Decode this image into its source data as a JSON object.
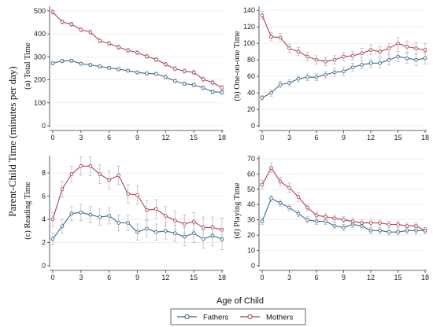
{
  "figure": {
    "shared_ylabel": "Parent-Child Time (minutes per day)",
    "shared_xlabel": "Age of Child",
    "legend": {
      "fathers": "Fathers",
      "mothers": "Mothers"
    },
    "colors": {
      "fathers": "#3d6a8f",
      "mothers": "#b04350"
    }
  },
  "chart_data": [
    {
      "type": "line",
      "ylabel": "(a) Total Time",
      "x": [
        0,
        1,
        2,
        3,
        4,
        5,
        6,
        7,
        8,
        9,
        10,
        11,
        12,
        13,
        14,
        15,
        16,
        17,
        18
      ],
      "xticks": [
        0,
        3,
        6,
        9,
        12,
        15,
        18
      ],
      "ylim": [
        0,
        520
      ],
      "yticks": [
        0,
        100,
        200,
        300,
        400,
        500
      ],
      "series": [
        {
          "name": "Fathers",
          "values": [
            272,
            282,
            283,
            270,
            265,
            258,
            252,
            246,
            240,
            232,
            228,
            226,
            212,
            195,
            183,
            178,
            165,
            148,
            145
          ],
          "err": [
            7,
            8,
            7,
            7,
            7,
            7,
            7,
            7,
            7,
            7,
            7,
            7,
            7,
            8,
            8,
            8,
            8,
            9,
            9
          ]
        },
        {
          "name": "Mothers",
          "values": [
            495,
            452,
            442,
            418,
            408,
            370,
            358,
            342,
            328,
            318,
            302,
            288,
            268,
            248,
            238,
            232,
            202,
            188,
            166
          ],
          "err": [
            9,
            9,
            9,
            9,
            9,
            9,
            9,
            9,
            9,
            9,
            9,
            9,
            9,
            9,
            9,
            10,
            10,
            10,
            10
          ]
        }
      ]
    },
    {
      "type": "line",
      "ylabel": "(b) One-on-one Time",
      "x": [
        0,
        1,
        2,
        3,
        4,
        5,
        6,
        7,
        8,
        9,
        10,
        11,
        12,
        13,
        14,
        15,
        16,
        17,
        18
      ],
      "xticks": [
        0,
        3,
        6,
        9,
        12,
        15,
        18
      ],
      "ylim": [
        0,
        145
      ],
      "yticks": [
        0,
        20,
        40,
        60,
        80,
        100,
        120,
        140
      ],
      "series": [
        {
          "name": "Fathers",
          "values": [
            34,
            40,
            50,
            52,
            57,
            59,
            59,
            62,
            65,
            66,
            71,
            74,
            76,
            76,
            80,
            84,
            82,
            80,
            82
          ],
          "err": [
            3,
            4,
            4,
            4,
            4,
            4,
            4,
            4,
            5,
            5,
            5,
            5,
            5,
            6,
            6,
            6,
            6,
            7,
            7
          ]
        },
        {
          "name": "Mothers",
          "values": [
            134,
            108,
            107,
            94,
            90,
            84,
            80,
            78,
            80,
            84,
            85,
            88,
            92,
            90,
            94,
            100,
            96,
            94,
            92
          ],
          "err": [
            5,
            5,
            5,
            5,
            5,
            5,
            5,
            5,
            5,
            5,
            5,
            6,
            6,
            6,
            6,
            7,
            7,
            7,
            8
          ]
        }
      ]
    },
    {
      "type": "line",
      "ylabel": "(c) Reading Time",
      "x": [
        0,
        1,
        2,
        3,
        4,
        5,
        6,
        7,
        8,
        9,
        10,
        11,
        12,
        13,
        14,
        15,
        16,
        17,
        18
      ],
      "xticks": [
        0,
        3,
        6,
        9,
        12,
        15,
        18
      ],
      "ylim": [
        0,
        9.5
      ],
      "yticks": [
        0,
        2,
        4,
        6,
        8
      ],
      "series": [
        {
          "name": "Fathers",
          "values": [
            2.3,
            3.4,
            4.5,
            4.6,
            4.4,
            4.2,
            4.3,
            3.7,
            3.7,
            2.9,
            3.2,
            2.9,
            3.0,
            2.8,
            2.5,
            2.8,
            2.3,
            2.6,
            2.3
          ],
          "err": [
            0.5,
            0.6,
            0.6,
            0.7,
            0.7,
            0.7,
            0.7,
            0.7,
            0.7,
            0.7,
            0.7,
            0.7,
            0.7,
            0.7,
            0.8,
            0.8,
            0.8,
            0.9,
            0.9
          ]
        },
        {
          "name": "Mothers",
          "values": [
            4.0,
            6.6,
            7.9,
            8.6,
            8.6,
            7.9,
            7.4,
            7.8,
            6.2,
            6.1,
            4.8,
            4.9,
            4.3,
            3.9,
            3.6,
            3.8,
            3.3,
            3.3,
            3.1
          ],
          "err": [
            0.6,
            0.7,
            0.7,
            0.8,
            0.8,
            0.8,
            0.8,
            0.8,
            0.8,
            0.8,
            0.8,
            0.8,
            0.8,
            0.8,
            0.8,
            0.8,
            0.9,
            0.9,
            1.0
          ]
        }
      ]
    },
    {
      "type": "line",
      "ylabel": "(d) Playing Time",
      "x": [
        0,
        1,
        2,
        3,
        4,
        5,
        6,
        7,
        8,
        9,
        10,
        11,
        12,
        13,
        14,
        15,
        16,
        17,
        18
      ],
      "xticks": [
        0,
        3,
        6,
        9,
        12,
        15,
        18
      ],
      "ylim": [
        0,
        72
      ],
      "yticks": [
        0,
        10,
        20,
        30,
        40,
        50,
        60,
        70
      ],
      "series": [
        {
          "name": "Fathers",
          "values": [
            29,
            44,
            41,
            38,
            34,
            30,
            29,
            29,
            26,
            25,
            27,
            26,
            23,
            23,
            22,
            22,
            23,
            23,
            23
          ],
          "err": [
            2,
            2,
            2,
            2,
            2,
            2,
            2,
            2,
            2,
            2,
            2,
            2,
            2,
            2,
            2,
            2,
            2,
            2,
            2
          ]
        },
        {
          "name": "Mothers",
          "values": [
            53,
            64,
            55,
            51,
            45,
            38,
            33,
            32,
            31,
            30,
            29,
            28,
            28,
            28,
            27,
            27,
            26,
            26,
            23
          ],
          "err": [
            3,
            3,
            3,
            3,
            3,
            2,
            2,
            2,
            2,
            2,
            2,
            2,
            2,
            2,
            2,
            2,
            2,
            2,
            2
          ]
        }
      ]
    }
  ]
}
